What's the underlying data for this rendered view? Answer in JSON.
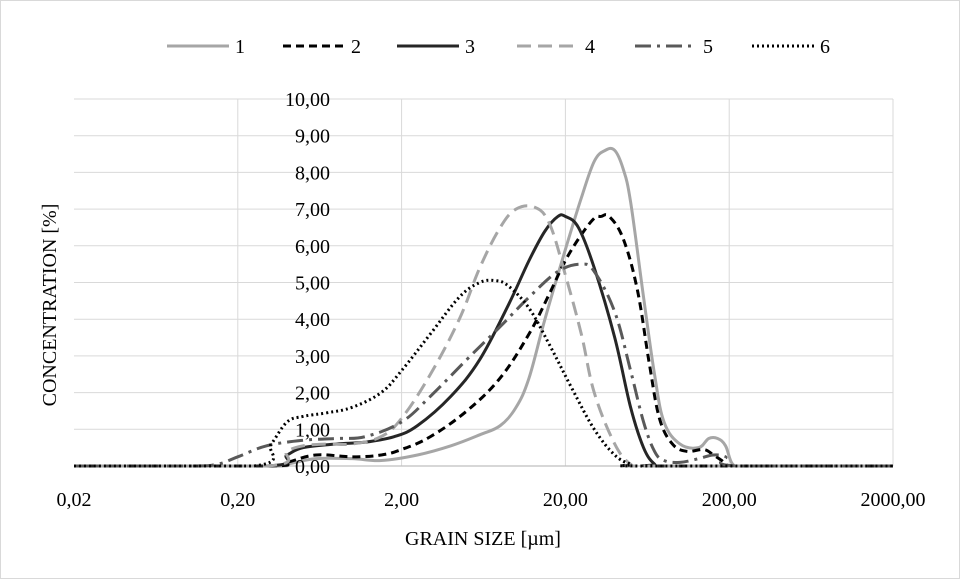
{
  "chart_data": {
    "type": "line",
    "title": "",
    "xlabel": "GRAIN SIZE [µm]",
    "ylabel": "CONCENTRATION [%]",
    "x_scale": "log",
    "xlim": [
      0.02,
      2000
    ],
    "ylim": [
      0,
      10
    ],
    "x_ticks": [
      "0,02",
      "0,20",
      "2,00",
      "20,00",
      "200,00",
      "2000,00"
    ],
    "x_tick_values": [
      0.02,
      0.2,
      2,
      20,
      200,
      2000
    ],
    "y_ticks": [
      "0,00",
      "1,00",
      "2,00",
      "3,00",
      "4,00",
      "5,00",
      "6,00",
      "7,00",
      "8,00",
      "9,00",
      "10,00"
    ],
    "y_tick_values": [
      0,
      1,
      2,
      3,
      4,
      5,
      6,
      7,
      8,
      9,
      10
    ],
    "grid": true,
    "legend_position": "top",
    "series": [
      {
        "name": "1",
        "color": "#a6a6a6",
        "dash": "solid",
        "x": [
          0.02,
          0.3,
          0.4,
          0.6,
          1,
          1.5,
          2.5,
          4,
          6,
          8,
          10,
          12,
          15,
          20,
          25,
          30,
          35,
          40,
          45,
          50,
          60,
          70,
          80,
          100,
          130,
          150,
          170,
          190,
          210,
          250,
          2000
        ],
        "y": [
          0,
          0,
          0.05,
          0.2,
          0.2,
          0.15,
          0.3,
          0.55,
          0.85,
          1.1,
          1.6,
          2.4,
          4.0,
          5.9,
          7.3,
          8.3,
          8.6,
          8.6,
          8.1,
          7.2,
          4.6,
          2.5,
          1.2,
          0.6,
          0.5,
          0.75,
          0.75,
          0.55,
          0.05,
          0,
          0
        ]
      },
      {
        "name": "2",
        "color": "#000000",
        "dash": "8,5",
        "x": [
          0.02,
          0.3,
          0.4,
          0.6,
          1,
          1.5,
          2,
          3,
          5,
          8,
          12,
          16,
          20,
          25,
          30,
          33,
          37,
          45,
          55,
          65,
          75,
          90,
          110,
          140,
          160,
          180,
          200,
          250,
          2000
        ],
        "y": [
          0,
          0,
          0.1,
          0.3,
          0.25,
          0.3,
          0.45,
          0.8,
          1.5,
          2.4,
          3.6,
          4.7,
          5.6,
          6.3,
          6.75,
          6.8,
          6.8,
          6.2,
          4.8,
          2.8,
          1.3,
          0.6,
          0.4,
          0.45,
          0.3,
          0.15,
          0,
          0,
          0
        ]
      },
      {
        "name": "3",
        "color": "#262626",
        "dash": "solid",
        "x": [
          0.02,
          0.3,
          0.4,
          0.5,
          0.8,
          1.2,
          1.8,
          2.5,
          4,
          6,
          9,
          12,
          15,
          18,
          20,
          24,
          30,
          40,
          50,
          60,
          70,
          80,
          2000
        ],
        "y": [
          0,
          0,
          0.3,
          0.5,
          0.6,
          0.65,
          0.8,
          1.1,
          1.9,
          2.9,
          4.4,
          5.6,
          6.4,
          6.8,
          6.8,
          6.5,
          5.4,
          3.5,
          1.6,
          0.5,
          0.05,
          0,
          0
        ]
      },
      {
        "name": "4",
        "color": "#a6a6a6",
        "dash": "14,7",
        "x": [
          0.02,
          0.3,
          0.4,
          0.5,
          0.7,
          1,
          1.5,
          2,
          3,
          4.5,
          6,
          8,
          10,
          13,
          16,
          20,
          25,
          30,
          40,
          50,
          60,
          2000
        ],
        "y": [
          0,
          0,
          0.4,
          0.55,
          0.6,
          0.6,
          0.8,
          1.3,
          2.5,
          4.0,
          5.4,
          6.5,
          7.0,
          7.05,
          6.6,
          5.2,
          3.6,
          2.0,
          0.6,
          0.05,
          0,
          0
        ]
      },
      {
        "name": "5",
        "color": "#595959",
        "dash": "16,6,3,6",
        "x": [
          0.02,
          0.1,
          0.15,
          0.2,
          0.3,
          0.5,
          0.8,
          1.2,
          2,
          3,
          5,
          8,
          12,
          18,
          25,
          30,
          40,
          50,
          60,
          70,
          80,
          100,
          130,
          160,
          190,
          220,
          2000
        ],
        "y": [
          0,
          0,
          0.05,
          0.25,
          0.55,
          0.7,
          0.75,
          0.8,
          1.2,
          1.9,
          2.9,
          3.8,
          4.6,
          5.3,
          5.5,
          5.3,
          4.2,
          2.6,
          1.2,
          0.4,
          0.15,
          0.1,
          0.2,
          0.3,
          0.25,
          0,
          0
        ]
      },
      {
        "name": "6",
        "color": "#000000",
        "dash": "2,3",
        "x": [
          0.02,
          0.25,
          0.32,
          0.4,
          0.5,
          0.7,
          1,
          1.5,
          2,
          3,
          4.5,
          6,
          7.5,
          9,
          12,
          16,
          22,
          30,
          40,
          50,
          60,
          2000
        ],
        "y": [
          0,
          0,
          0.6,
          1.2,
          1.35,
          1.45,
          1.6,
          2.0,
          2.6,
          3.6,
          4.6,
          5.0,
          5.05,
          4.9,
          4.3,
          3.3,
          2.1,
          1.0,
          0.3,
          0.05,
          0,
          0
        ]
      }
    ]
  }
}
